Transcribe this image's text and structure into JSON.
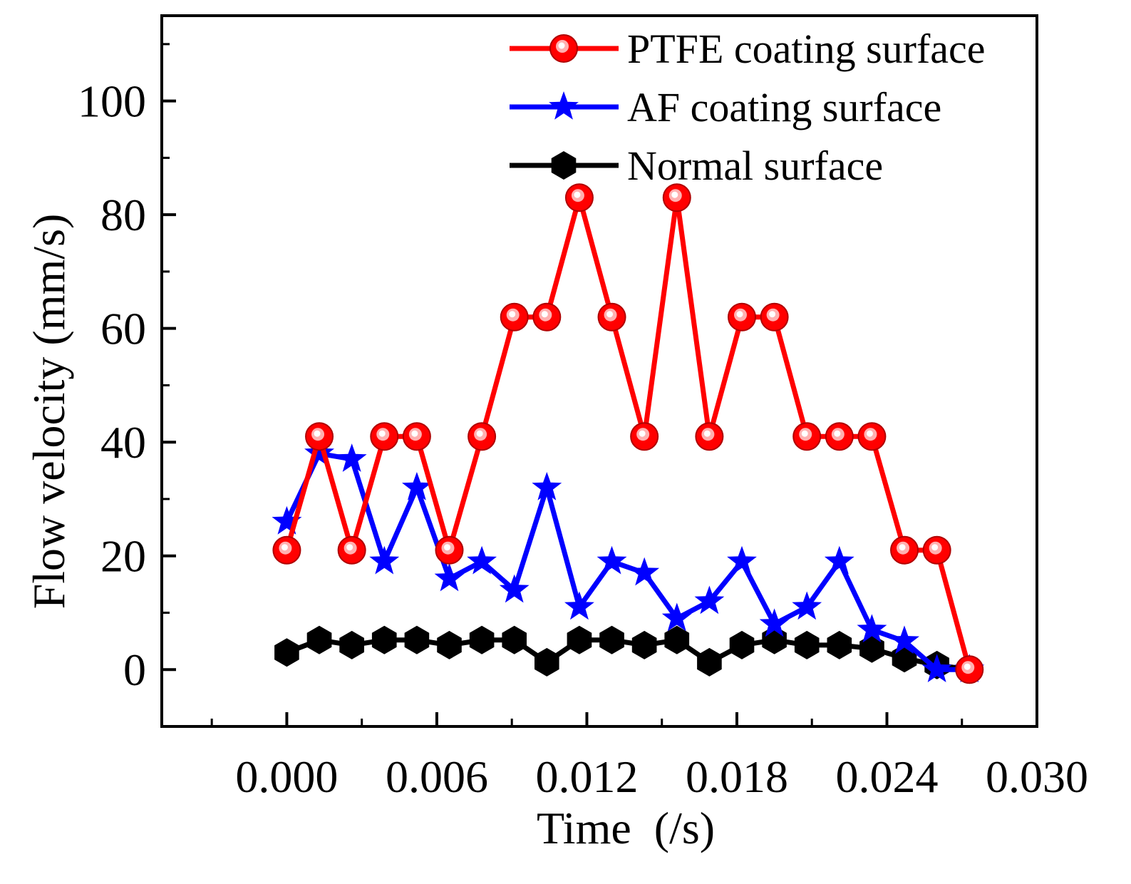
{
  "chart_data": {
    "type": "line",
    "xlabel": "Time  (/s)",
    "ylabel": "Flow velocity (mm/s)",
    "xlim": [
      -0.005,
      0.03
    ],
    "ylim": [
      -10,
      115
    ],
    "x_ticks": [
      0.0,
      0.006,
      0.012,
      0.018,
      0.024,
      0.03
    ],
    "x_tick_labels": [
      "0.000",
      "0.006",
      "0.012",
      "0.018",
      "0.024",
      "0.030"
    ],
    "y_ticks": [
      0,
      20,
      40,
      60,
      80,
      100
    ],
    "y_tick_labels": [
      "0",
      "20",
      "40",
      "60",
      "80",
      "100"
    ],
    "legend_position": "top-right",
    "series": [
      {
        "name": "PTFE coating surface",
        "color": "#ff0000",
        "marker": "circle",
        "x": [
          0.0,
          0.0013,
          0.0026,
          0.0039,
          0.0052,
          0.0065,
          0.0078,
          0.0091,
          0.0104,
          0.0117,
          0.013,
          0.0143,
          0.0156,
          0.0169,
          0.0182,
          0.0195,
          0.0208,
          0.0221,
          0.0234,
          0.0247,
          0.026,
          0.0273
        ],
        "values": [
          21,
          41,
          21,
          41,
          41,
          21,
          41,
          62,
          62,
          83,
          62,
          41,
          83,
          41,
          62,
          62,
          41,
          41,
          41,
          21,
          21,
          0
        ]
      },
      {
        "name": "AF coating surface",
        "color": "#0000ff",
        "marker": "star",
        "x": [
          0.0,
          0.0013,
          0.0026,
          0.0039,
          0.0052,
          0.0065,
          0.0078,
          0.0091,
          0.0104,
          0.0117,
          0.013,
          0.0143,
          0.0156,
          0.0169,
          0.0182,
          0.0195,
          0.0208,
          0.0221,
          0.0234,
          0.0247,
          0.026,
          0.0273
        ],
        "values": [
          26,
          38,
          37,
          19,
          32,
          16,
          19,
          14,
          32,
          11,
          19,
          17,
          9,
          12,
          19,
          8,
          11,
          19,
          7,
          5,
          0,
          0
        ]
      },
      {
        "name": "Normal surface",
        "color": "#000000",
        "marker": "hexagon",
        "x": [
          0.0,
          0.0013,
          0.0026,
          0.0039,
          0.0052,
          0.0065,
          0.0078,
          0.0091,
          0.0104,
          0.0117,
          0.013,
          0.0143,
          0.0156,
          0.0169,
          0.0182,
          0.0195,
          0.0208,
          0.0221,
          0.0234,
          0.0247,
          0.026,
          0.0273
        ],
        "values": [
          3,
          5.2,
          4.3,
          5.2,
          5.2,
          4.3,
          5.2,
          5.2,
          1.3,
          5.2,
          5.2,
          4.3,
          5.2,
          1.3,
          4.3,
          5.2,
          4.3,
          4.3,
          3.7,
          2,
          0.8,
          0
        ]
      }
    ]
  }
}
